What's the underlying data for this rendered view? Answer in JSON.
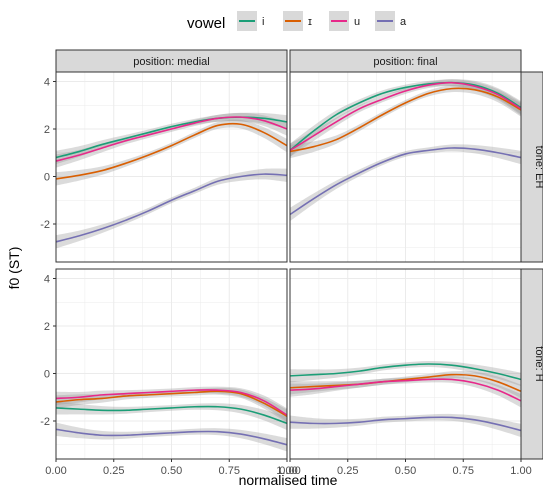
{
  "chart_data": {
    "type": "line",
    "legend": {
      "title": "vowel",
      "placement": "top",
      "entries": [
        {
          "label": "i",
          "color": "#1b9e77"
        },
        {
          "label": "ɪ",
          "color": "#d95f02"
        },
        {
          "label": "u",
          "color": "#e7298a"
        },
        {
          "label": "a",
          "color": "#7570b3"
        }
      ]
    },
    "xlabel": "normalised time",
    "ylabel": "f0 (ST)",
    "xlim": [
      0,
      1
    ],
    "ylim": [
      -3.6,
      4.4
    ],
    "x_ticks": [
      0,
      0.25,
      0.5,
      0.75,
      1
    ],
    "x_tick_labels": [
      "0.00",
      "0.25",
      "0.50",
      "0.75",
      "1.00"
    ],
    "y_ticks": [
      -2,
      0,
      2,
      4
    ],
    "y_tick_labels": [
      "-2",
      "0",
      "2",
      "4"
    ],
    "grid": true,
    "column_facets": [
      "position: medial",
      "position: final"
    ],
    "row_facets": [
      "tone: EH",
      "tone: H"
    ],
    "panels": [
      {
        "row": 0,
        "col": 0,
        "series": [
          {
            "name": "i",
            "x": [
              0,
              0.1,
              0.2,
              0.3,
              0.4,
              0.5,
              0.6,
              0.7,
              0.8,
              0.9,
              1
            ],
            "y": [
              0.8,
              1.05,
              1.35,
              1.6,
              1.85,
              2.1,
              2.3,
              2.45,
              2.5,
              2.45,
              2.3
            ]
          },
          {
            "name": "ɪ",
            "x": [
              0,
              0.1,
              0.2,
              0.3,
              0.4,
              0.5,
              0.6,
              0.7,
              0.8,
              0.9,
              1
            ],
            "y": [
              -0.1,
              0.05,
              0.25,
              0.55,
              0.9,
              1.3,
              1.75,
              2.15,
              2.2,
              1.85,
              1.3
            ]
          },
          {
            "name": "u",
            "x": [
              0,
              0.1,
              0.2,
              0.3,
              0.4,
              0.5,
              0.6,
              0.7,
              0.8,
              0.9,
              1
            ],
            "y": [
              0.65,
              0.9,
              1.2,
              1.5,
              1.75,
              2.0,
              2.25,
              2.45,
              2.5,
              2.35,
              2.0
            ]
          },
          {
            "name": "a",
            "x": [
              0,
              0.1,
              0.2,
              0.3,
              0.4,
              0.5,
              0.6,
              0.7,
              0.8,
              0.9,
              1
            ],
            "y": [
              -2.75,
              -2.5,
              -2.2,
              -1.85,
              -1.45,
              -1.0,
              -0.6,
              -0.2,
              0.0,
              0.1,
              0.05
            ]
          }
        ]
      },
      {
        "row": 0,
        "col": 1,
        "series": [
          {
            "name": "i",
            "x": [
              0,
              0.1,
              0.2,
              0.3,
              0.4,
              0.5,
              0.6,
              0.7,
              0.8,
              0.9,
              1
            ],
            "y": [
              1.1,
              1.9,
              2.6,
              3.1,
              3.5,
              3.75,
              3.9,
              3.95,
              3.85,
              3.5,
              2.9
            ]
          },
          {
            "name": "ɪ",
            "x": [
              0,
              0.1,
              0.2,
              0.3,
              0.4,
              0.5,
              0.6,
              0.7,
              0.8,
              0.9,
              1
            ],
            "y": [
              1.05,
              1.25,
              1.55,
              2.05,
              2.6,
              3.1,
              3.5,
              3.7,
              3.65,
              3.35,
              2.8
            ]
          },
          {
            "name": "u",
            "x": [
              0,
              0.1,
              0.2,
              0.3,
              0.4,
              0.5,
              0.6,
              0.7,
              0.8,
              0.9,
              1
            ],
            "y": [
              1.1,
              1.7,
              2.3,
              2.85,
              3.25,
              3.6,
              3.85,
              3.95,
              3.8,
              3.45,
              2.85
            ]
          },
          {
            "name": "a",
            "x": [
              0,
              0.1,
              0.2,
              0.3,
              0.4,
              0.5,
              0.6,
              0.7,
              0.8,
              0.9,
              1
            ],
            "y": [
              -1.6,
              -0.95,
              -0.35,
              0.15,
              0.6,
              0.95,
              1.1,
              1.2,
              1.15,
              1.0,
              0.8
            ]
          }
        ]
      },
      {
        "row": 1,
        "col": 0,
        "series": [
          {
            "name": "i",
            "x": [
              0,
              0.1,
              0.2,
              0.3,
              0.4,
              0.5,
              0.6,
              0.7,
              0.8,
              0.9,
              1
            ],
            "y": [
              -1.45,
              -1.5,
              -1.55,
              -1.55,
              -1.5,
              -1.45,
              -1.4,
              -1.4,
              -1.5,
              -1.75,
              -2.1
            ]
          },
          {
            "name": "ɪ",
            "x": [
              0,
              0.1,
              0.2,
              0.3,
              0.4,
              0.5,
              0.6,
              0.7,
              0.8,
              0.9,
              1
            ],
            "y": [
              -1.2,
              -1.1,
              -1.05,
              -0.95,
              -0.9,
              -0.85,
              -0.8,
              -0.75,
              -0.85,
              -1.25,
              -1.8
            ]
          },
          {
            "name": "u",
            "x": [
              0,
              0.1,
              0.2,
              0.3,
              0.4,
              0.5,
              0.6,
              0.7,
              0.8,
              0.9,
              1
            ],
            "y": [
              -1.05,
              -1.0,
              -0.9,
              -0.85,
              -0.8,
              -0.75,
              -0.7,
              -0.7,
              -0.8,
              -1.15,
              -1.75
            ]
          },
          {
            "name": "a",
            "x": [
              0,
              0.1,
              0.2,
              0.3,
              0.4,
              0.5,
              0.6,
              0.7,
              0.8,
              0.9,
              1
            ],
            "y": [
              -2.35,
              -2.5,
              -2.6,
              -2.6,
              -2.55,
              -2.5,
              -2.45,
              -2.45,
              -2.55,
              -2.75,
              -3.0
            ]
          }
        ]
      },
      {
        "row": 1,
        "col": 1,
        "series": [
          {
            "name": "i",
            "x": [
              0,
              0.1,
              0.2,
              0.3,
              0.4,
              0.5,
              0.6,
              0.7,
              0.8,
              0.9,
              1
            ],
            "y": [
              -0.1,
              -0.05,
              0.0,
              0.1,
              0.25,
              0.35,
              0.4,
              0.35,
              0.2,
              0.0,
              -0.25
            ]
          },
          {
            "name": "ɪ",
            "x": [
              0,
              0.1,
              0.2,
              0.3,
              0.4,
              0.5,
              0.6,
              0.7,
              0.8,
              0.9,
              1
            ],
            "y": [
              -0.6,
              -0.55,
              -0.5,
              -0.45,
              -0.35,
              -0.25,
              -0.15,
              -0.05,
              -0.1,
              -0.35,
              -0.75
            ]
          },
          {
            "name": "u",
            "x": [
              0,
              0.1,
              0.2,
              0.3,
              0.4,
              0.5,
              0.6,
              0.7,
              0.8,
              0.9,
              1
            ],
            "y": [
              -0.7,
              -0.65,
              -0.55,
              -0.45,
              -0.35,
              -0.3,
              -0.25,
              -0.25,
              -0.4,
              -0.7,
              -1.15
            ]
          },
          {
            "name": "a",
            "x": [
              0,
              0.1,
              0.2,
              0.3,
              0.4,
              0.5,
              0.6,
              0.7,
              0.8,
              0.9,
              1
            ],
            "y": [
              -2.05,
              -2.1,
              -2.1,
              -2.05,
              -1.95,
              -1.9,
              -1.85,
              -1.85,
              -1.95,
              -2.15,
              -2.4
            ]
          }
        ]
      }
    ]
  }
}
